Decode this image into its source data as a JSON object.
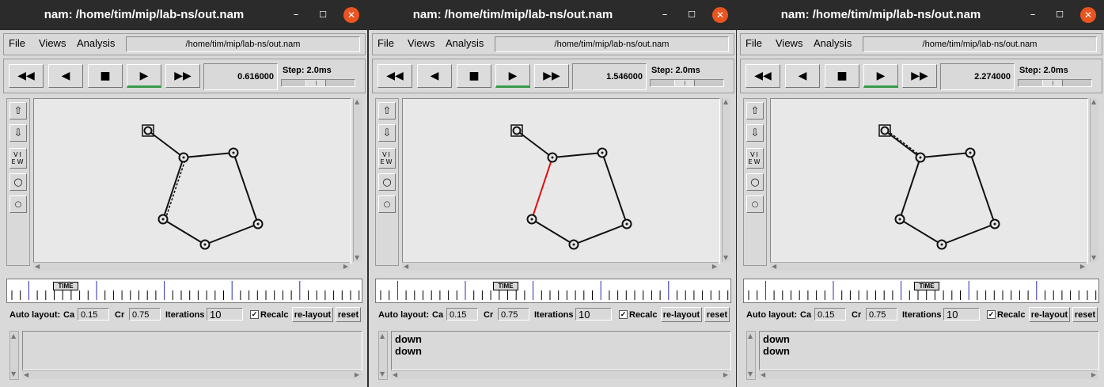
{
  "window_title": "nam: /home/tim/mip/lab-ns/out.nam",
  "window_controls": {
    "minimize": "–",
    "maximize": "☐",
    "close": "✕"
  },
  "menu": {
    "file": "File",
    "views": "Views",
    "analysis": "Analysis"
  },
  "path": "/home/tim/mip/lab-ns/out.nam",
  "toolbar": {
    "rewind": "◀◀",
    "back": "◀",
    "stop": "■",
    "play": "▶",
    "ffwd": "▶▶",
    "step_label": "Step: 2.0ms"
  },
  "timeline_label": "TIME",
  "autolayout": {
    "label": "Auto layout:",
    "ca_label": "Ca",
    "ca_value": "0.15",
    "cr_label": "Cr",
    "cr_value": "0.75",
    "iter_label": "Iterations",
    "iter_value": "10",
    "recalc_label": "Recalc",
    "relayout_label": "re-layout",
    "reset_label": "reset"
  },
  "icons": {
    "zoom_in": "zoom-in-icon",
    "zoom_out": "zoom-out-icon",
    "view": "view-icon",
    "node_large": "node-large-icon",
    "node_small": "node-small-icon"
  },
  "panes": [
    {
      "time": "0.616000",
      "output": [],
      "red_link": false,
      "slider": 0.45,
      "timeline_pos": 0.13
    },
    {
      "time": "1.546000",
      "output": [
        "down",
        "down"
      ],
      "red_link": true,
      "slider": 0.45,
      "timeline_pos": 0.33
    },
    {
      "time": "2.274000",
      "output": [
        "down",
        "down"
      ],
      "red_link": false,
      "slider": 0.45,
      "timeline_pos": 0.48
    }
  ]
}
